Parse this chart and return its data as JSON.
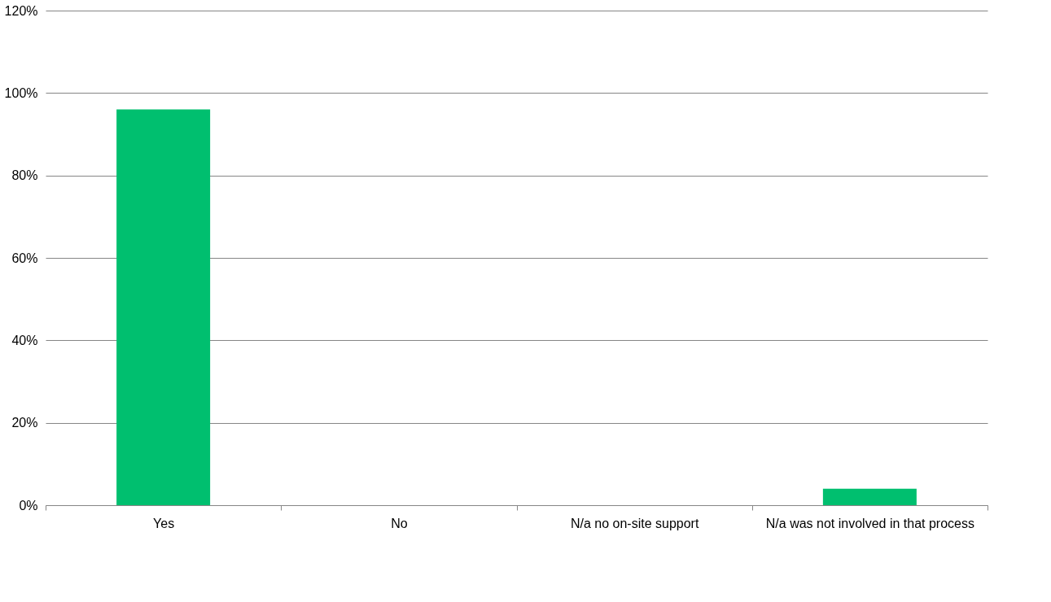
{
  "chart_data": {
    "type": "bar",
    "categories": [
      "Yes",
      "No",
      "N/a no on-site support",
      "N/a was not involved in that process"
    ],
    "values": [
      96,
      0,
      0,
      4
    ],
    "color": "#00bf6f",
    "ylim": [
      0,
      120
    ],
    "yticks": [
      {
        "value": 0,
        "label": "0%"
      },
      {
        "value": 20,
        "label": "20%"
      },
      {
        "value": 40,
        "label": "40%"
      },
      {
        "value": 60,
        "label": "60%"
      },
      {
        "value": 80,
        "label": "80%"
      },
      {
        "value": 100,
        "label": "100%"
      },
      {
        "value": 120,
        "label": "120%"
      }
    ],
    "grid": "y"
  }
}
